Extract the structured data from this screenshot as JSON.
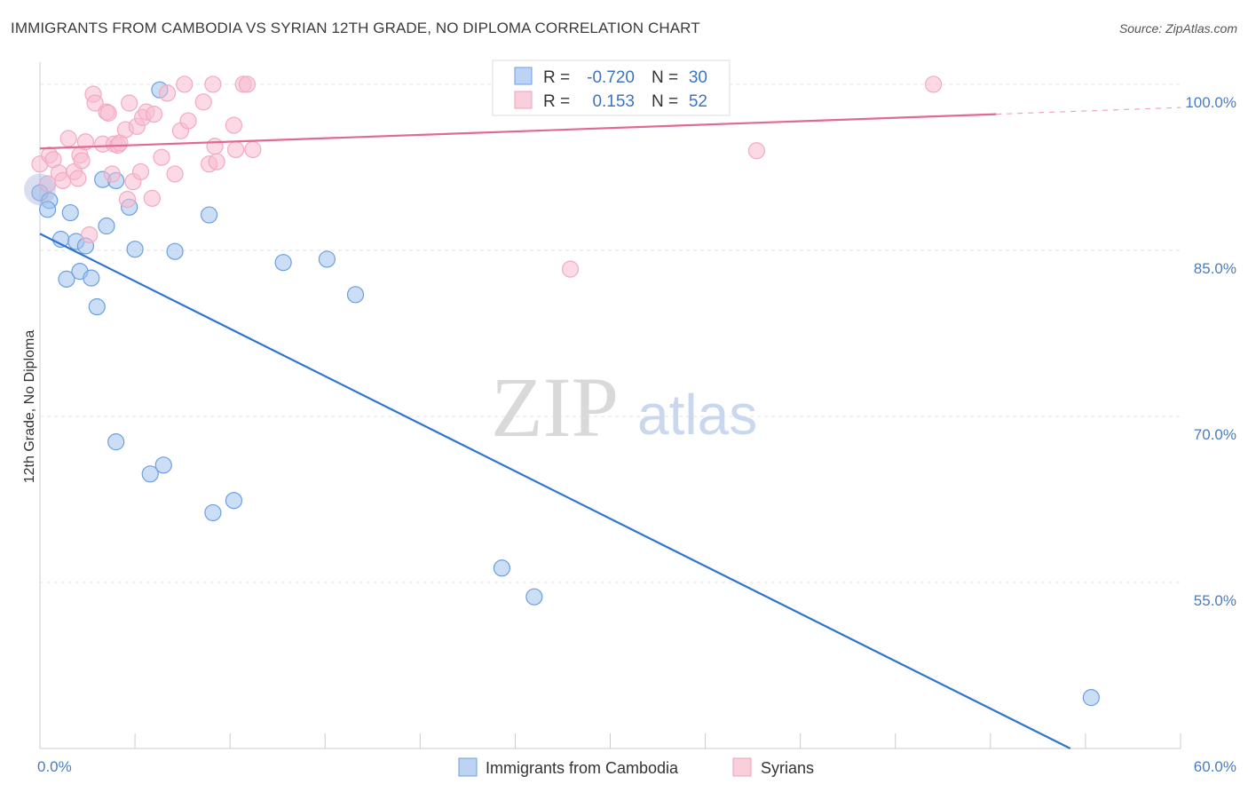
{
  "title": "IMMIGRANTS FROM CAMBODIA VS SYRIAN 12TH GRADE, NO DIPLOMA CORRELATION CHART",
  "source": "Source: ZipAtlas.com",
  "watermark": {
    "zip": "ZIP",
    "atlas": "atlas"
  },
  "chart_data": {
    "type": "scatter",
    "title": "IMMIGRANTS FROM CAMBODIA VS SYRIAN 12TH GRADE, NO DIPLOMA CORRELATION CHART",
    "xlabel": "",
    "ylabel": "12th Grade, No Diploma",
    "xlim": [
      0,
      60
    ],
    "ylim": [
      40,
      102
    ],
    "x_tick_labels": [
      {
        "value": 0,
        "label": "0.0%"
      },
      {
        "value": 60,
        "label": "60.0%"
      }
    ],
    "y_tick_labels": [
      {
        "value": 100,
        "label": "100.0%"
      },
      {
        "value": 85,
        "label": "85.0%"
      },
      {
        "value": 70,
        "label": "70.0%"
      },
      {
        "value": 55,
        "label": "55.0%"
      }
    ],
    "grid": true,
    "legend_position": "bottom-center",
    "series": [
      {
        "name": "Immigrants from Cambodia",
        "color": "#6d9fe0",
        "line_color": "#2f74d0",
        "R": "-0.720",
        "N": "30",
        "trend": {
          "x0": 0,
          "y0": 86.5,
          "x1": 54.2,
          "y1": 40
        },
        "points": [
          [
            0.0,
            90.2
          ],
          [
            0.5,
            89.5
          ],
          [
            0.4,
            88.7
          ],
          [
            1.6,
            88.4
          ],
          [
            1.1,
            86.0
          ],
          [
            1.9,
            85.8
          ],
          [
            2.4,
            85.4
          ],
          [
            3.5,
            87.2
          ],
          [
            6.3,
            99.5
          ],
          [
            3.3,
            91.4
          ],
          [
            4.0,
            91.3
          ],
          [
            4.7,
            88.9
          ],
          [
            5.0,
            85.1
          ],
          [
            7.1,
            84.9
          ],
          [
            8.9,
            88.2
          ],
          [
            1.4,
            82.4
          ],
          [
            2.1,
            83.1
          ],
          [
            2.7,
            82.5
          ],
          [
            3.0,
            79.9
          ],
          [
            12.8,
            83.9
          ],
          [
            15.1,
            84.2
          ],
          [
            16.6,
            81.0
          ],
          [
            4.0,
            67.7
          ],
          [
            5.8,
            64.8
          ],
          [
            6.5,
            65.6
          ],
          [
            9.1,
            61.3
          ],
          [
            10.2,
            62.4
          ],
          [
            24.3,
            56.3
          ],
          [
            26.0,
            53.7
          ],
          [
            55.3,
            44.6
          ]
        ]
      },
      {
        "name": "Syrians",
        "color": "#f4a9c0",
        "line_color": "#e06a93",
        "R": "0.153",
        "N": "52",
        "trend": {
          "x0": 0,
          "y0": 94.2,
          "x1": 50.3,
          "y1": 97.3,
          "dash_to_x": 60,
          "dash_to_y": 97.9
        },
        "points": [
          [
            0.0,
            92.8
          ],
          [
            0.5,
            93.6
          ],
          [
            0.7,
            93.2
          ],
          [
            1.0,
            92.0
          ],
          [
            1.2,
            91.3
          ],
          [
            1.5,
            95.1
          ],
          [
            1.8,
            92.1
          ],
          [
            2.0,
            91.5
          ],
          [
            2.1,
            93.6
          ],
          [
            2.2,
            93.1
          ],
          [
            2.4,
            94.8
          ],
          [
            2.6,
            86.4
          ],
          [
            2.8,
            99.1
          ],
          [
            2.9,
            98.3
          ],
          [
            3.3,
            94.6
          ],
          [
            3.5,
            97.5
          ],
          [
            3.6,
            97.4
          ],
          [
            3.8,
            91.9
          ],
          [
            3.9,
            94.6
          ],
          [
            4.1,
            94.5
          ],
          [
            4.2,
            94.7
          ],
          [
            4.5,
            95.9
          ],
          [
            4.6,
            89.6
          ],
          [
            4.7,
            98.3
          ],
          [
            4.9,
            91.2
          ],
          [
            5.1,
            96.2
          ],
          [
            5.3,
            92.1
          ],
          [
            5.4,
            97.0
          ],
          [
            5.6,
            97.5
          ],
          [
            5.9,
            89.7
          ],
          [
            6.0,
            97.3
          ],
          [
            6.4,
            93.4
          ],
          [
            6.7,
            99.2
          ],
          [
            7.1,
            91.9
          ],
          [
            7.4,
            95.8
          ],
          [
            7.6,
            100.0
          ],
          [
            7.8,
            96.7
          ],
          [
            8.6,
            98.4
          ],
          [
            8.9,
            92.8
          ],
          [
            9.1,
            100.0
          ],
          [
            9.2,
            94.4
          ],
          [
            9.3,
            93.0
          ],
          [
            10.2,
            96.3
          ],
          [
            10.3,
            94.1
          ],
          [
            10.7,
            100.0
          ],
          [
            10.9,
            100.0
          ],
          [
            11.2,
            94.1
          ],
          [
            27.6,
            100.0
          ],
          [
            27.9,
            83.3
          ],
          [
            37.7,
            94.0
          ],
          [
            47.0,
            100.0
          ],
          [
            0.4,
            91.0
          ]
        ]
      }
    ]
  },
  "legend": {
    "items": [
      {
        "label": "Immigrants from Cambodia",
        "color": "#bcd3f3",
        "stroke": "#6d9fe0"
      },
      {
        "label": "Syrians",
        "color": "#f9cfdc",
        "stroke": "#f0a1ba"
      }
    ]
  },
  "stats_box": {
    "rows": [
      {
        "r_label": "R =",
        "r_value": "-0.720",
        "n_label": "N =",
        "n_value": "30",
        "color": "#bcd3f3",
        "stroke": "#6d9fe0"
      },
      {
        "r_label": "R =",
        "r_value": "0.153",
        "n_label": "N =",
        "n_value": "52",
        "color": "#f9cfdc",
        "stroke": "#f0a1ba"
      }
    ]
  }
}
